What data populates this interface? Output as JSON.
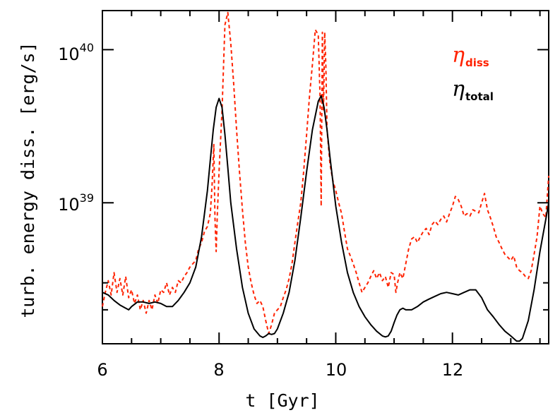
{
  "chart_data": {
    "type": "line",
    "xlabel": "t [Gyr]",
    "ylabel": "turb. energy diss. [erg/s]",
    "xlim": [
      6.0,
      13.65
    ],
    "ylim": [
      1.2e+38,
      1.8e+40
    ],
    "yscale": "log",
    "x_ticks": [
      {
        "value": 6,
        "label": "6"
      },
      {
        "value": 8,
        "label": "8"
      },
      {
        "value": 10,
        "label": "10"
      },
      {
        "value": 12,
        "label": "12"
      }
    ],
    "y_ticks": [
      {
        "value": 1e+39,
        "base": "10",
        "exp": "39"
      },
      {
        "value": 1e+40,
        "base": "10",
        "exp": "40"
      }
    ],
    "y_minor_ticks": [
      2e+38,
      3e+38
    ],
    "series": [
      {
        "name_symbol": "η",
        "name_sub": "diss",
        "color": "#ff2200",
        "dash": "dashed",
        "x": [
          6.0,
          6.05,
          6.1,
          6.15,
          6.2,
          6.25,
          6.3,
          6.35,
          6.4,
          6.45,
          6.5,
          6.55,
          6.6,
          6.65,
          6.7,
          6.75,
          6.8,
          6.85,
          6.9,
          6.95,
          7.0,
          7.05,
          7.1,
          7.15,
          7.2,
          7.25,
          7.3,
          7.35,
          7.4,
          7.45,
          7.5,
          7.55,
          7.6,
          7.65,
          7.7,
          7.75,
          7.8,
          7.85,
          7.88,
          7.91,
          7.93,
          7.95,
          7.97,
          8.0,
          8.05,
          8.1,
          8.15,
          8.2,
          8.25,
          8.3,
          8.35,
          8.4,
          8.45,
          8.5,
          8.55,
          8.6,
          8.65,
          8.7,
          8.75,
          8.8,
          8.85,
          8.9,
          8.95,
          9.0,
          9.05,
          9.1,
          9.15,
          9.2,
          9.25,
          9.3,
          9.35,
          9.4,
          9.45,
          9.5,
          9.55,
          9.6,
          9.65,
          9.7,
          9.73,
          9.75,
          9.77,
          9.79,
          9.81,
          9.83,
          9.85,
          9.9,
          9.95,
          10.0,
          10.05,
          10.1,
          10.15,
          10.2,
          10.25,
          10.3,
          10.35,
          10.4,
          10.45,
          10.5,
          10.55,
          10.6,
          10.65,
          10.7,
          10.75,
          10.8,
          10.85,
          10.9,
          10.95,
          11.0,
          11.03,
          11.06,
          11.1,
          11.15,
          11.2,
          11.25,
          11.3,
          11.35,
          11.4,
          11.45,
          11.5,
          11.55,
          11.6,
          11.65,
          11.7,
          11.75,
          11.8,
          11.85,
          11.9,
          11.95,
          12.0,
          12.05,
          12.1,
          12.15,
          12.2,
          12.25,
          12.3,
          12.35,
          12.4,
          12.45,
          12.5,
          12.55,
          12.6,
          12.65,
          12.7,
          12.75,
          12.8,
          12.85,
          12.9,
          12.95,
          13.0,
          13.05,
          13.1,
          13.15,
          13.2,
          13.25,
          13.3,
          13.35,
          13.4,
          13.45,
          13.5,
          13.55,
          13.6,
          13.65
        ],
        "y": [
          2.1e+38,
          2.6e+38,
          3.1e+38,
          2.5e+38,
          3.5e+38,
          2.6e+38,
          3.2e+38,
          2.5e+38,
          3.3e+38,
          2.4e+38,
          2.7e+38,
          2.2e+38,
          2.5e+38,
          2e+38,
          2.3e+38,
          1.9e+38,
          2.3e+38,
          2e+38,
          2.5e+38,
          2.2e+38,
          2.7e+38,
          2.6e+38,
          3e+38,
          2.5e+38,
          2.8e+38,
          2.6e+38,
          3.1e+38,
          3e+38,
          3.3e+38,
          3.5e+38,
          3.8e+38,
          4e+38,
          4.2e+38,
          5e+38,
          5.5e+38,
          6.5e+38,
          7e+38,
          8.5e+38,
          1.3e+39,
          2.4e+39,
          8e+38,
          4.8e+38,
          8.5e+38,
          1.6e+39,
          4e+39,
          1.45e+40,
          1.75e+40,
          1.1e+40,
          6e+39,
          3e+39,
          1.6e+39,
          9e+38,
          5.5e+38,
          3.8e+38,
          3e+38,
          2.5e+38,
          2.2e+38,
          2.3e+38,
          2.1e+38,
          1.7e+38,
          1.4e+38,
          1.6e+38,
          1.9e+38,
          2e+38,
          2.1e+38,
          2.4e+38,
          2.7e+38,
          3.2e+38,
          4e+38,
          5.5e+38,
          7.5e+38,
          1e+39,
          1.6e+39,
          2.8e+39,
          5e+39,
          8e+39,
          1.35e+40,
          1.25e+40,
          5e+39,
          9.5e+38,
          1.3e+40,
          4e+39,
          1.3e+40,
          8e+39,
          3e+39,
          1.8e+39,
          1.4e+39,
          1.2e+39,
          1e+39,
          8.5e+38,
          6.5e+38,
          5e+38,
          4.5e+38,
          4e+38,
          3.5e+38,
          3e+38,
          2.6e+38,
          2.8e+38,
          3e+38,
          3.3e+38,
          3.6e+38,
          3.2e+38,
          3.5e+38,
          3.1e+38,
          3.3e+38,
          2.8e+38,
          3.5e+38,
          3.4e+38,
          2.6e+38,
          3e+38,
          3.5e+38,
          3.2e+38,
          4e+38,
          5e+38,
          5.8e+38,
          6e+38,
          5.5e+38,
          6e+38,
          6.5e+38,
          6.8e+38,
          6.2e+38,
          7.2e+38,
          7.6e+38,
          7.2e+38,
          7.8e+38,
          8.2e+38,
          7.5e+38,
          8.5e+38,
          9.5e+38,
          1.1e+39,
          1.05e+39,
          9.5e+38,
          8.2e+38,
          8.5e+38,
          8.2e+38,
          9e+38,
          8.8e+38,
          8.6e+38,
          1e+39,
          1.15e+39,
          9e+38,
          8e+38,
          7e+38,
          6e+38,
          5.5e+38,
          5e+38,
          4.6e+38,
          4.4e+38,
          4.2e+38,
          4.5e+38,
          3.8e+38,
          3.6e+38,
          3.5e+38,
          3.3e+38,
          3.2e+38,
          3.6e+38,
          4.6e+38,
          6e+38,
          9.5e+38,
          8.5e+38,
          8e+38,
          1.5e+39
        ]
      },
      {
        "name_symbol": "η",
        "name_sub": "total",
        "color": "#000000",
        "dash": "solid",
        "x": [
          6.0,
          6.1,
          6.2,
          6.3,
          6.4,
          6.45,
          6.5,
          6.6,
          6.7,
          6.8,
          6.9,
          7.0,
          7.1,
          7.2,
          7.3,
          7.4,
          7.5,
          7.6,
          7.7,
          7.8,
          7.85,
          7.9,
          7.95,
          8.0,
          8.05,
          8.1,
          8.15,
          8.2,
          8.3,
          8.4,
          8.5,
          8.6,
          8.7,
          8.75,
          8.8,
          8.85,
          8.9,
          8.95,
          9.0,
          9.1,
          9.2,
          9.3,
          9.4,
          9.5,
          9.6,
          9.7,
          9.75,
          9.8,
          9.85,
          9.9,
          10.0,
          10.1,
          10.2,
          10.3,
          10.4,
          10.5,
          10.6,
          10.7,
          10.8,
          10.85,
          10.9,
          10.95,
          11.0,
          11.05,
          11.1,
          11.15,
          11.2,
          11.3,
          11.4,
          11.5,
          11.6,
          11.7,
          11.8,
          11.9,
          12.0,
          12.1,
          12.2,
          12.3,
          12.4,
          12.5,
          12.6,
          12.7,
          12.8,
          12.9,
          13.0,
          13.1,
          13.15,
          13.2,
          13.3,
          13.4,
          13.5,
          13.6,
          13.65
        ],
        "y": [
          2.6e+38,
          2.5e+38,
          2.3e+38,
          2.15e+38,
          2.05e+38,
          2e+38,
          2.1e+38,
          2.25e+38,
          2.25e+38,
          2.2e+38,
          2.25e+38,
          2.2e+38,
          2.1e+38,
          2.1e+38,
          2.3e+38,
          2.6e+38,
          3e+38,
          3.8e+38,
          6e+38,
          1.2e+39,
          1.9e+39,
          3e+39,
          4.2e+39,
          4.8e+39,
          4.2e+39,
          2.8e+39,
          1.7e+39,
          1e+39,
          5e+38,
          2.8e+38,
          1.9e+38,
          1.5e+38,
          1.35e+38,
          1.32e+38,
          1.35e+38,
          1.4e+38,
          1.38e+38,
          1.4e+38,
          1.5e+38,
          1.9e+38,
          2.6e+38,
          4.2e+38,
          8e+38,
          1.6e+39,
          3e+39,
          4.6e+39,
          5e+39,
          4.2e+39,
          3e+39,
          2e+39,
          9.5e+38,
          5.5e+38,
          3.5e+38,
          2.6e+38,
          2.1e+38,
          1.8e+38,
          1.6e+38,
          1.45e+38,
          1.35e+38,
          1.33e+38,
          1.35e+38,
          1.45e+38,
          1.65e+38,
          1.85e+38,
          2e+38,
          2.05e+38,
          2e+38,
          2e+38,
          2.1e+38,
          2.25e+38,
          2.35e+38,
          2.45e+38,
          2.55e+38,
          2.6e+38,
          2.55e+38,
          2.5e+38,
          2.6e+38,
          2.7e+38,
          2.7e+38,
          2.4e+38,
          2e+38,
          1.8e+38,
          1.6e+38,
          1.45e+38,
          1.35e+38,
          1.25e+38,
          1.25e+38,
          1.3e+38,
          1.7e+38,
          2.7e+38,
          4.8e+38,
          7.8e+38,
          1e+39
        ]
      }
    ],
    "legend_position": "top-right"
  }
}
